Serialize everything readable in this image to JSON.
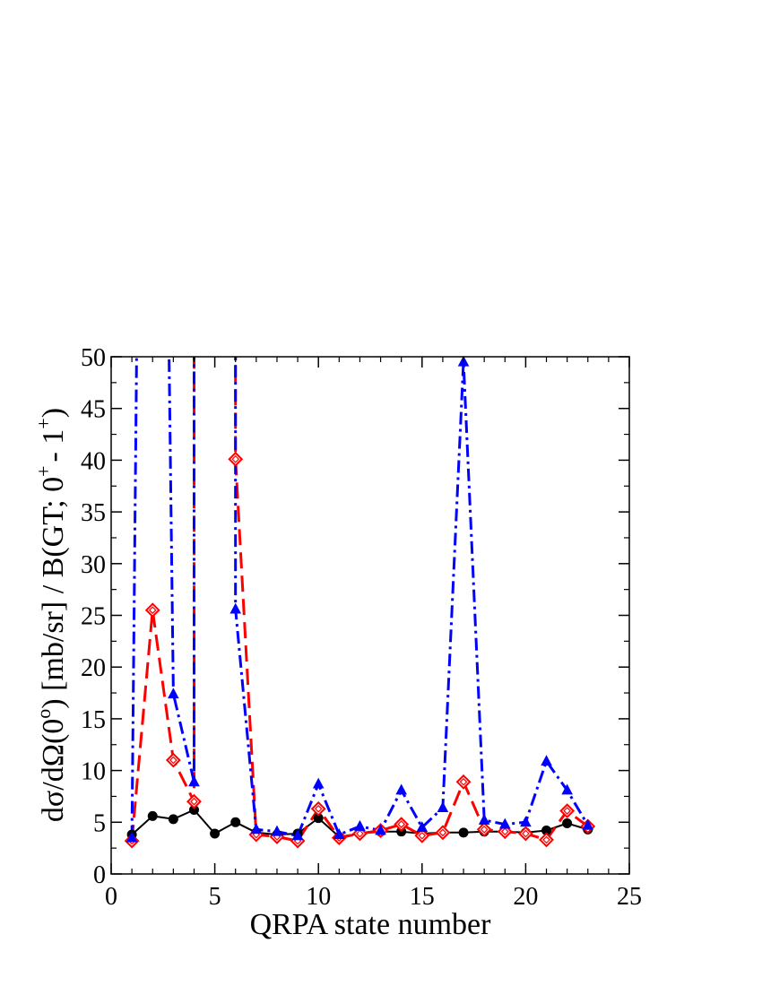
{
  "chart_data": {
    "type": "line",
    "xlabel": "QRPA state number",
    "ylabel_parts": {
      "main": "dσ/dΩ(0",
      "deg": "o",
      "mid": ") [mb/sr] / B(GT; 0",
      "sup1": "+",
      "mid2": "- 1",
      "sup2": "+",
      "end": ")"
    },
    "xlim": [
      0,
      25
    ],
    "ylim": [
      0,
      50
    ],
    "xticks": [
      0,
      5,
      10,
      15,
      20,
      25
    ],
    "yticks": [
      0,
      5,
      10,
      15,
      20,
      25,
      30,
      35,
      40,
      45,
      50
    ],
    "grid": false,
    "series": [
      {
        "style": "solid",
        "color": "#000000",
        "marker": "circle",
        "x": [
          1,
          2,
          3,
          4,
          5,
          6,
          7,
          8,
          9,
          10,
          11,
          12,
          13,
          14,
          15,
          16,
          17,
          18,
          19,
          20,
          21,
          22,
          23
        ],
        "y": [
          3.8,
          5.6,
          5.3,
          6.2,
          3.9,
          5.0,
          4.0,
          3.8,
          3.9,
          5.4,
          3.6,
          3.9,
          4.1,
          4.1,
          3.9,
          4.0,
          4.0,
          4.1,
          4.1,
          4.0,
          4.2,
          4.9,
          4.3
        ]
      },
      {
        "style": "dashed",
        "color": "#ff0000",
        "marker": "diamond",
        "x": [
          1,
          2,
          3,
          4,
          4,
          6,
          6,
          7,
          8,
          9,
          10,
          11,
          12,
          13,
          14,
          15,
          16,
          17,
          18,
          19,
          20,
          21,
          22,
          23
        ],
        "y": [
          3.2,
          25.5,
          11.0,
          7.0,
          65,
          65,
          40.1,
          3.8,
          3.6,
          3.2,
          6.3,
          3.5,
          3.9,
          4.2,
          4.8,
          3.7,
          4.0,
          8.9,
          4.3,
          4.1,
          3.9,
          3.3,
          6.1,
          4.6
        ]
      },
      {
        "style": "dashdot",
        "color": "#0000ff",
        "marker": "triangle",
        "x": [
          1,
          1.3,
          2.7,
          3,
          4,
          4,
          6,
          6,
          7,
          8,
          9,
          10,
          11,
          12,
          13,
          14,
          15,
          16,
          17,
          18,
          19,
          20,
          21,
          22,
          23
        ],
        "y": [
          3.5,
          65,
          65,
          17.4,
          8.9,
          65,
          65,
          25.6,
          4.3,
          4.1,
          3.7,
          8.7,
          3.8,
          4.6,
          4.2,
          8.1,
          4.5,
          6.4,
          49.5,
          5.2,
          4.8,
          5.0,
          10.9,
          8.1,
          4.7
        ],
        "marker_mask": [
          1,
          0,
          0,
          1,
          1,
          0,
          0,
          1,
          1,
          1,
          1,
          1,
          1,
          1,
          1,
          1,
          1,
          1,
          1,
          1,
          1,
          1,
          1,
          1,
          1
        ]
      }
    ]
  }
}
